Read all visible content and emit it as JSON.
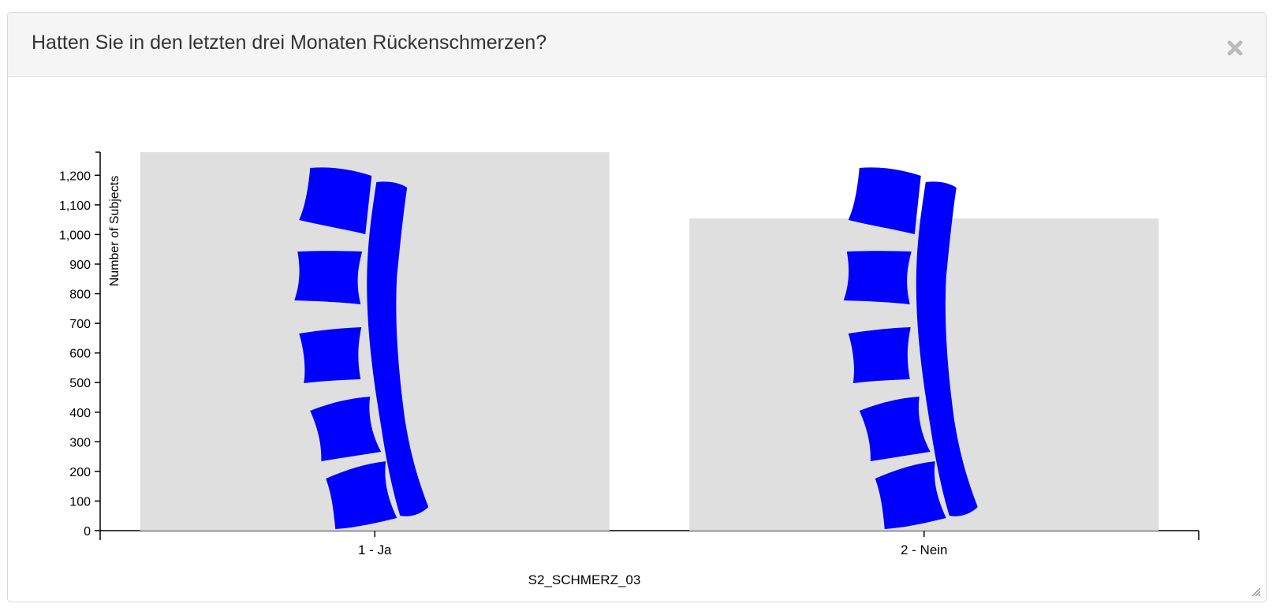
{
  "dialog": {
    "title": "Hatten Sie in den letzten drei Monaten Rückenschmerzen?"
  },
  "icons": {
    "close": "close-icon",
    "bar_image": "spine-icon",
    "resize": "resize-grip-icon"
  },
  "colors": {
    "bar_fill": "#dfdfdf",
    "spine": "#0000ff"
  },
  "chart_data": {
    "type": "bar",
    "categories": [
      "1 - Ja",
      "2 - Nein"
    ],
    "values": [
      1278,
      1054
    ],
    "xlabel": "S2_SCHMERZ_03",
    "ylabel": "Number of Subjects",
    "ylim": [
      0,
      1278
    ],
    "yticks": [
      0,
      100,
      200,
      300,
      400,
      500,
      600,
      700,
      800,
      900,
      1000,
      1100,
      1200
    ],
    "ytick_labels": [
      "0",
      "100",
      "200",
      "300",
      "400",
      "500",
      "600",
      "700",
      "800",
      "900",
      "1,000",
      "1,100",
      "1,200"
    ],
    "grid": false
  }
}
